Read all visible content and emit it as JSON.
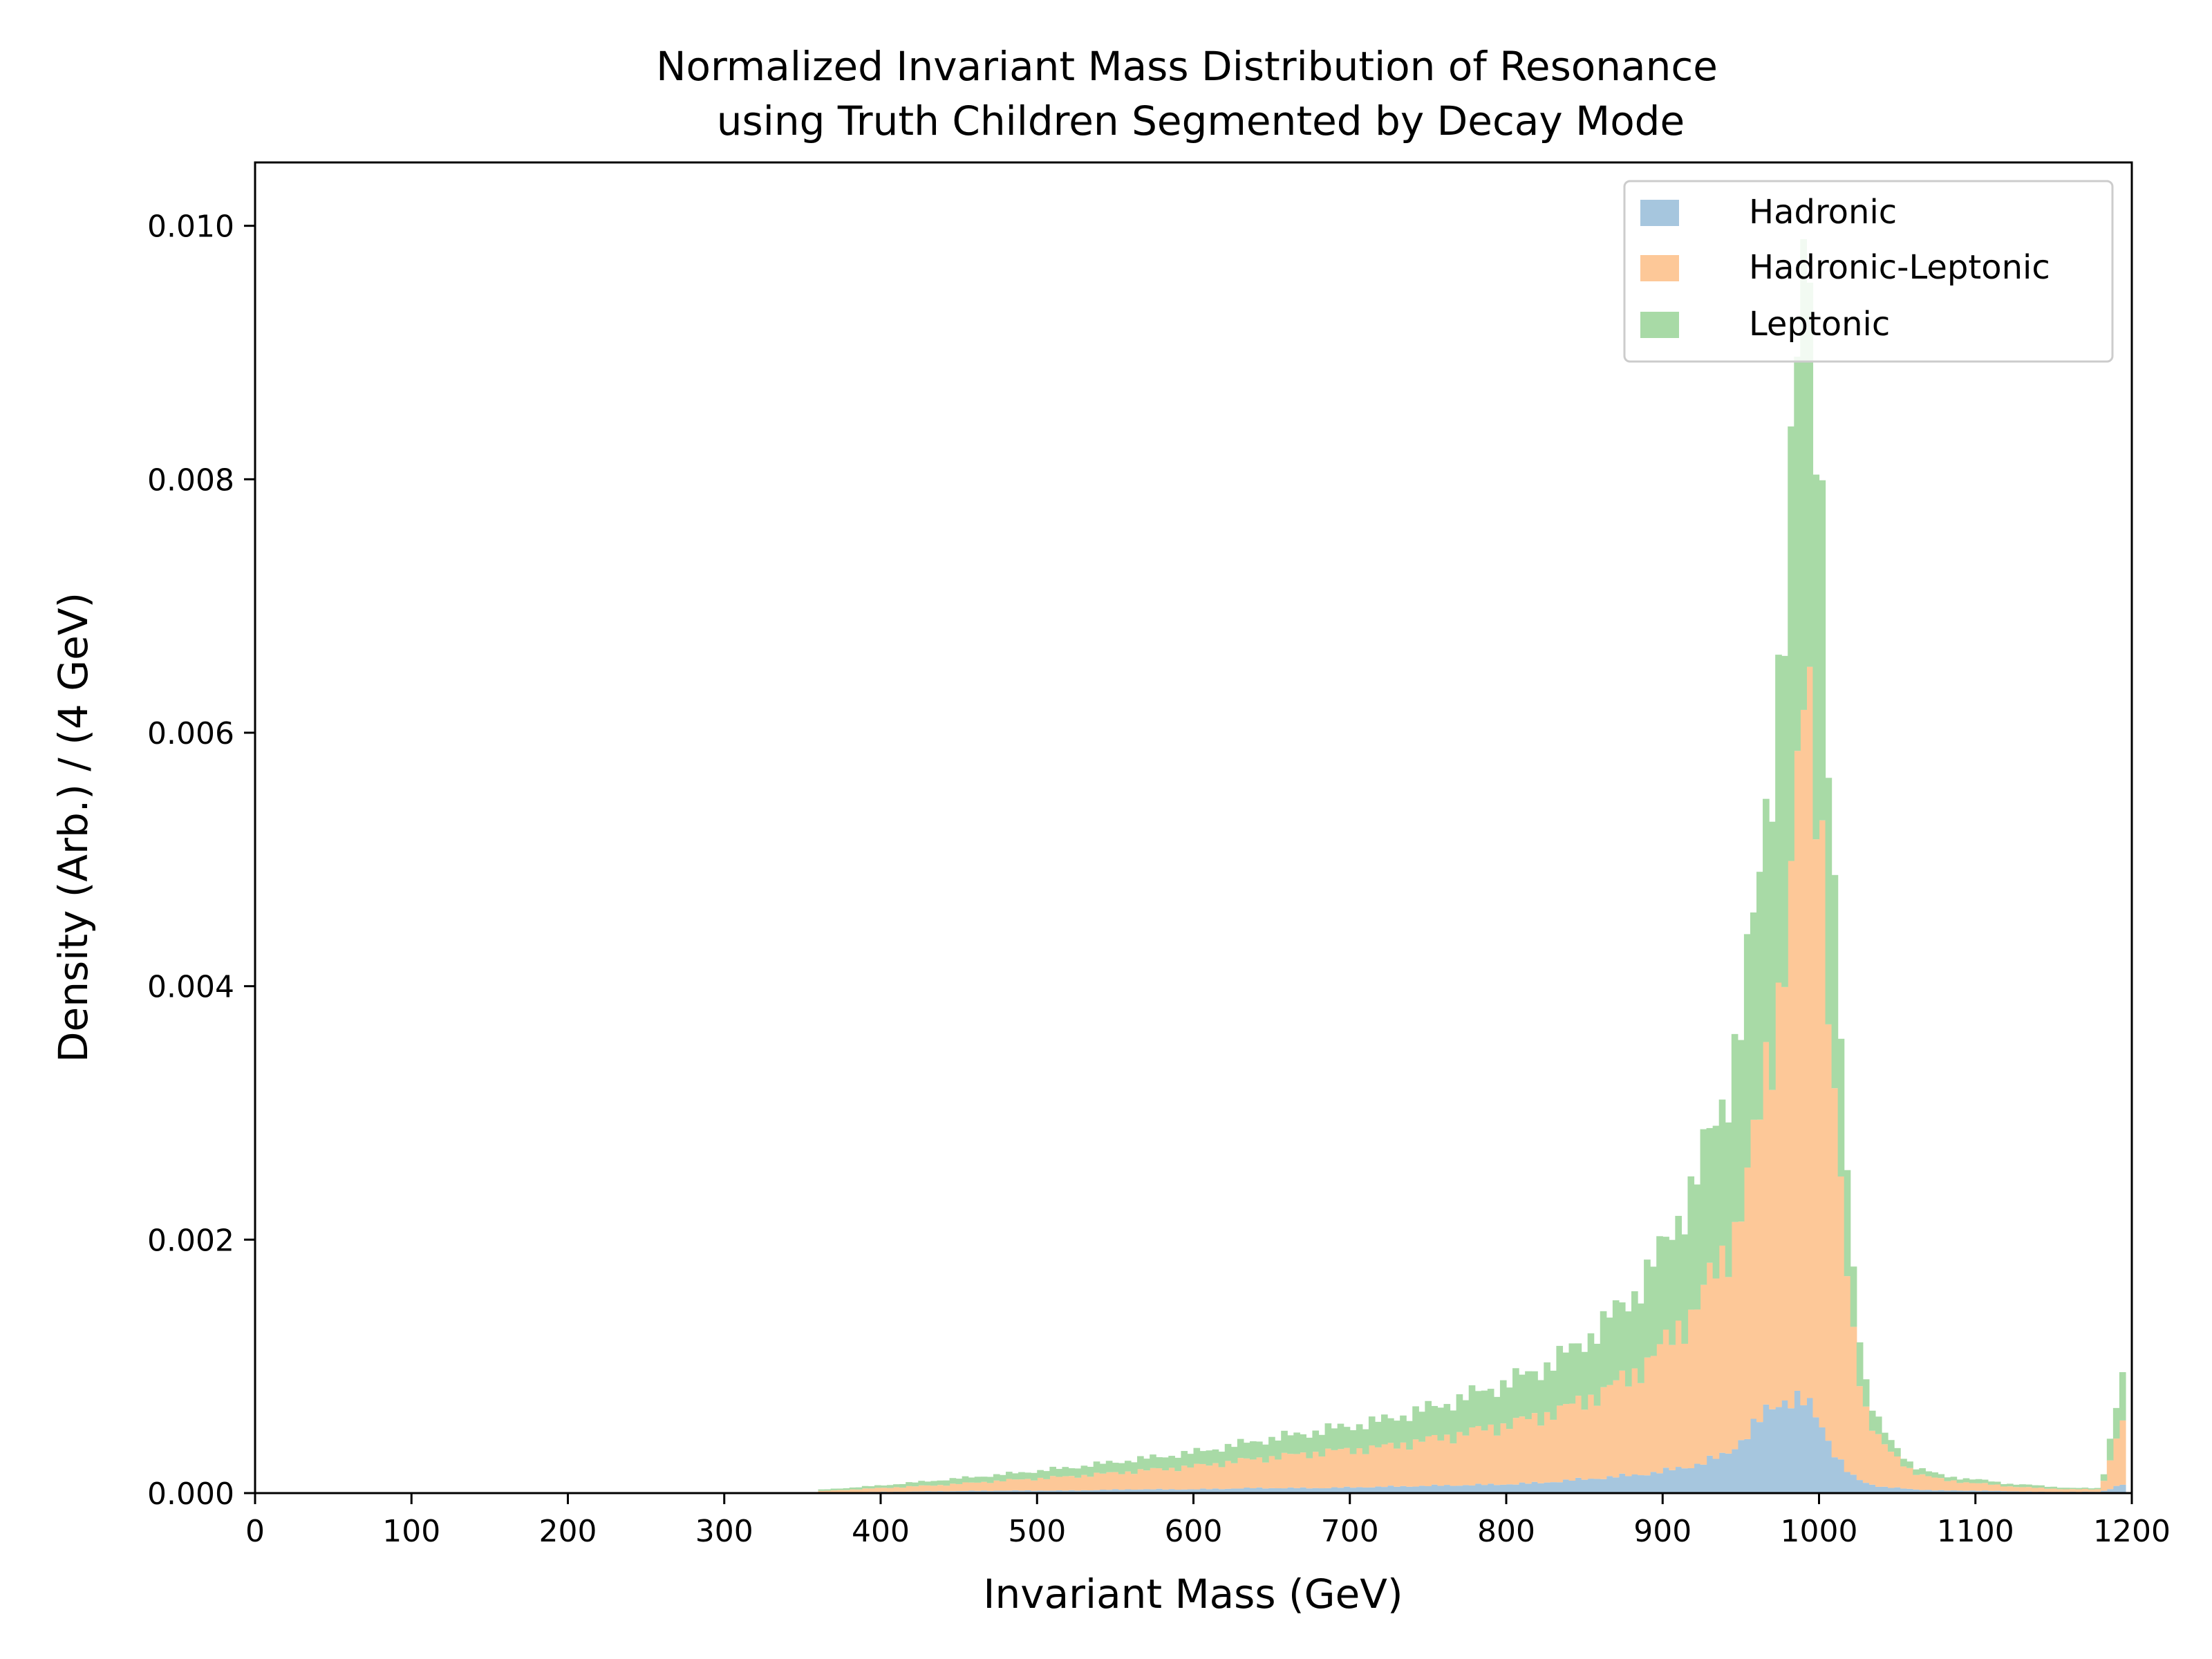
{
  "chart_data": {
    "type": "bar",
    "stacked": true,
    "histogram": true,
    "title_line1": "Normalized Invariant Mass Distribution of Resonance",
    "title_line2": "using Truth Children Segmented by Decay Mode",
    "xlabel": "Invariant Mass (GeV)",
    "ylabel": "Density (Arb.) / (4 GeV)",
    "xlim": [
      0,
      1200
    ],
    "ylim": [
      0,
      0.0105
    ],
    "bin_width": 4,
    "x_ticks": [
      0,
      100,
      200,
      300,
      400,
      500,
      600,
      700,
      800,
      900,
      1000,
      1100,
      1200
    ],
    "x_tick_labels": [
      "0",
      "100",
      "200",
      "300",
      "400",
      "500",
      "600",
      "700",
      "800",
      "900",
      "1000",
      "1100",
      "1200"
    ],
    "y_ticks": [
      0,
      0.002,
      0.004,
      0.006,
      0.008,
      0.01
    ],
    "y_tick_labels": [
      "0.000",
      "0.002",
      "0.004",
      "0.006",
      "0.008",
      "0.010"
    ],
    "legend_position": "top-right",
    "x": [
      360,
      400,
      440,
      480,
      520,
      560,
      600,
      640,
      680,
      720,
      760,
      800,
      820,
      840,
      860,
      880,
      900,
      920,
      940,
      950,
      960,
      970,
      980,
      990,
      1000,
      1010,
      1020,
      1030,
      1040,
      1050,
      1060,
      1080,
      1100,
      1120,
      1140,
      1160,
      1180,
      1196
    ],
    "series": [
      {
        "name": "Hadronic",
        "color": "#a6c6de",
        "values": [
          5e-06,
          1e-05,
          1.5e-05,
          2e-05,
          2e-05,
          3e-05,
          3e-05,
          4e-05,
          4e-05,
          5e-05,
          6e-05,
          7e-05,
          8e-05,
          0.0001,
          0.00012,
          0.00014,
          0.00017,
          0.00022,
          0.0003,
          0.00042,
          0.00055,
          0.00068,
          0.00076,
          0.00072,
          0.00058,
          0.00032,
          0.00014,
          8e-05,
          5e-05,
          4e-05,
          3e-05,
          2e-05,
          2e-05,
          1.5e-05,
          1e-05,
          1e-05,
          1e-05,
          8e-05
        ]
      },
      {
        "name": "Hadronic-Leptonic",
        "color": "#fdc898",
        "values": [
          1e-05,
          3e-05,
          5e-05,
          8e-05,
          0.00011,
          0.00014,
          0.00018,
          0.00023,
          0.00028,
          0.00031,
          0.00038,
          0.00047,
          0.00052,
          0.00058,
          0.00067,
          0.00079,
          0.00098,
          0.00123,
          0.00158,
          0.00185,
          0.00228,
          0.00292,
          0.00378,
          0.00542,
          0.00512,
          0.0028,
          0.00118,
          0.00058,
          0.00036,
          0.00022,
          0.00014,
          8e-05,
          6e-05,
          4e-05,
          3e-05,
          2e-05,
          2e-05,
          0.00057
        ]
      },
      {
        "name": "Leptonic",
        "color": "#a8daa6",
        "values": [
          1e-05,
          2e-05,
          4e-05,
          5e-05,
          7e-05,
          9e-05,
          0.00011,
          0.00014,
          0.00017,
          0.00021,
          0.00026,
          0.00033,
          0.00037,
          0.00043,
          0.00052,
          0.00062,
          0.00077,
          0.00099,
          0.00127,
          0.00149,
          0.00177,
          0.00228,
          0.00287,
          0.00346,
          0.00298,
          0.00148,
          0.00058,
          0.00022,
          0.0001,
          7e-05,
          5e-05,
          3e-05,
          3e-05,
          2e-05,
          2e-05,
          1e-05,
          1e-05,
          0.00039
        ]
      }
    ]
  }
}
